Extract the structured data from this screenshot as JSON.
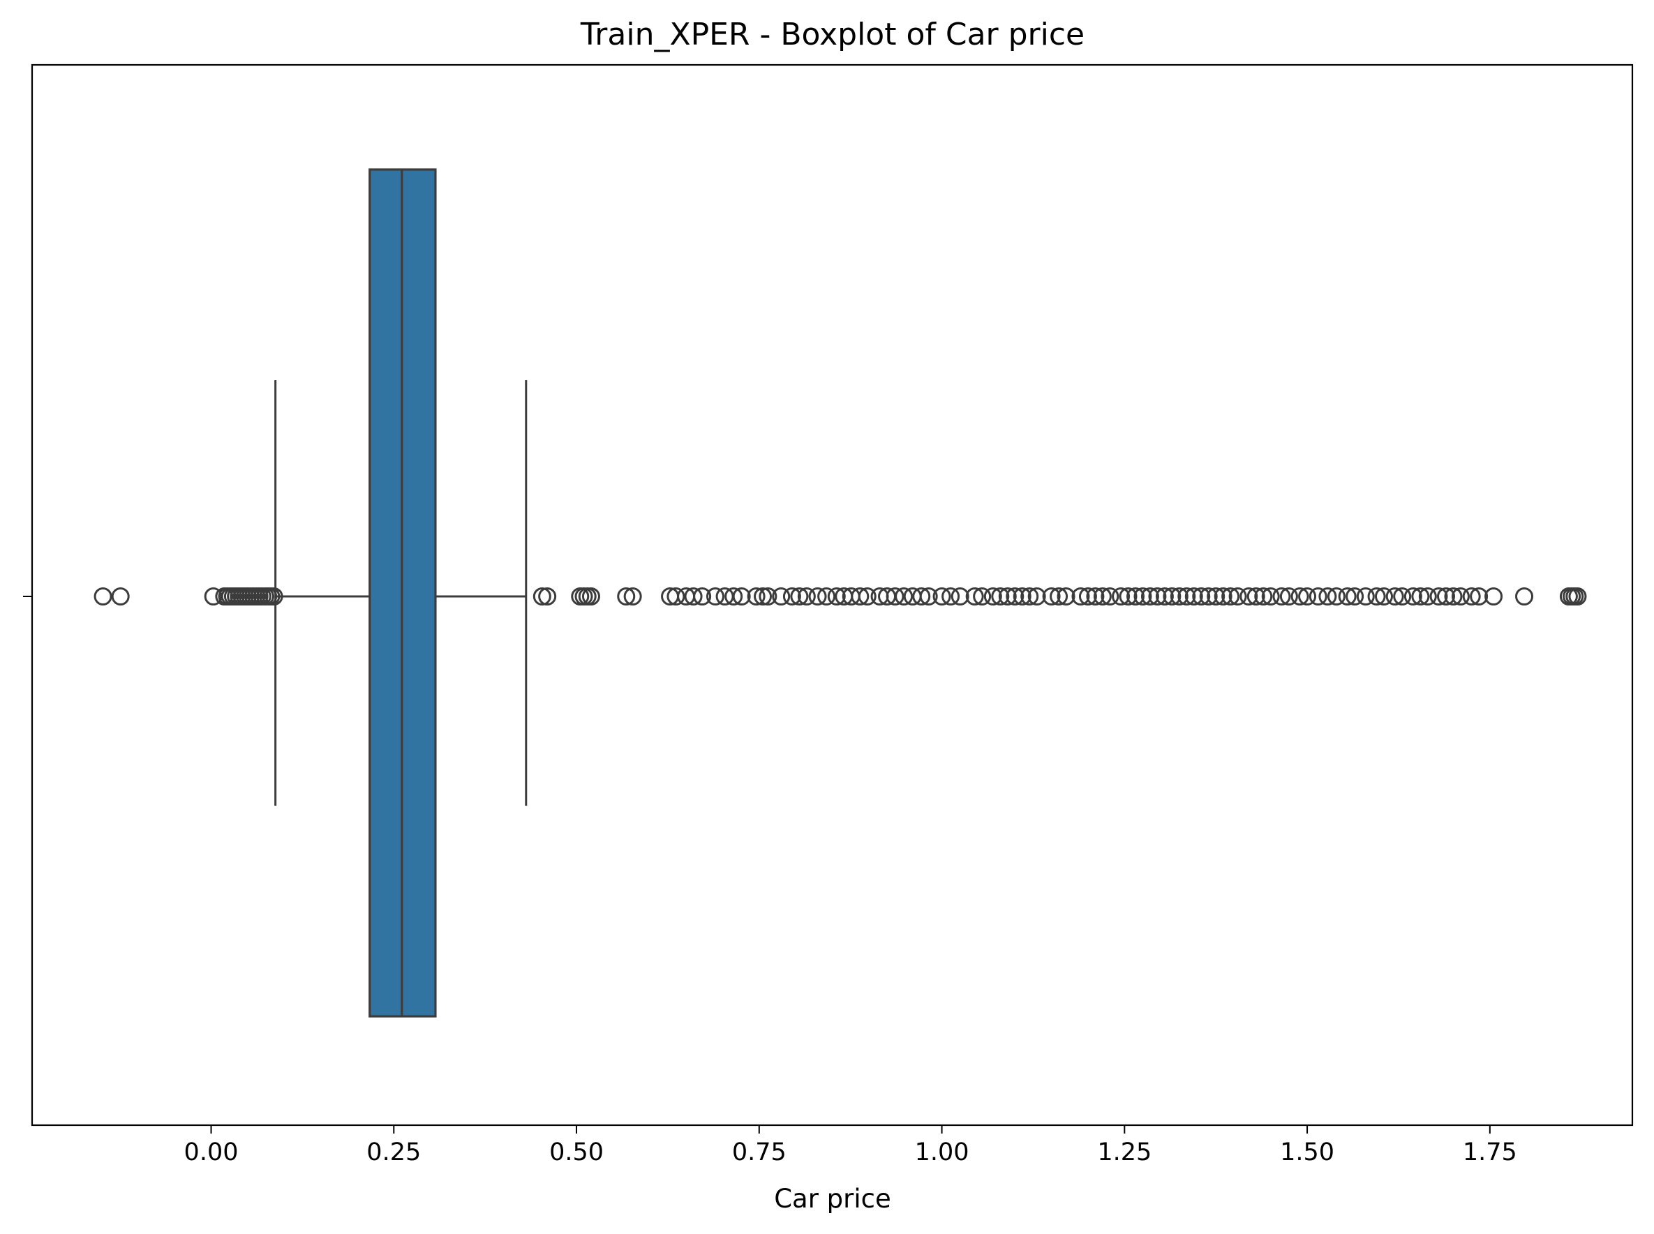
{
  "chart_data": {
    "type": "boxplot",
    "title": "Train_XPER - Boxplot of Car price",
    "xlabel": "Car price",
    "ylabel": "",
    "orientation": "horizontal",
    "xlim": [
      -0.245,
      1.945
    ],
    "xticks": [
      0.0,
      0.25,
      0.5,
      0.75,
      1.0,
      1.25,
      1.5,
      1.75
    ],
    "xtick_labels": [
      "0.00",
      "0.25",
      "0.50",
      "0.75",
      "1.00",
      "1.25",
      "1.50",
      "1.75"
    ],
    "grid": false,
    "box": {
      "whisker_low": 0.088,
      "q1": 0.217,
      "median": 0.261,
      "q3": 0.307,
      "whisker_high": 0.431
    },
    "outliers": [
      -0.148,
      -0.124,
      0.003,
      0.018,
      0.022,
      0.026,
      0.03,
      0.034,
      0.038,
      0.042,
      0.046,
      0.05,
      0.054,
      0.058,
      0.062,
      0.066,
      0.07,
      0.074,
      0.078,
      0.082,
      0.086,
      0.453,
      0.46,
      0.505,
      0.51,
      0.515,
      0.52,
      0.568,
      0.577,
      0.628,
      0.636,
      0.65,
      0.66,
      0.672,
      0.69,
      0.703,
      0.715,
      0.726,
      0.746,
      0.755,
      0.762,
      0.78,
      0.795,
      0.805,
      0.815,
      0.83,
      0.842,
      0.856,
      0.866,
      0.876,
      0.888,
      0.898,
      0.915,
      0.925,
      0.936,
      0.948,
      0.96,
      0.972,
      0.982,
      1.0,
      1.012,
      1.025,
      1.045,
      1.055,
      1.07,
      1.08,
      1.09,
      1.1,
      1.11,
      1.12,
      1.13,
      1.15,
      1.16,
      1.17,
      1.19,
      1.2,
      1.21,
      1.22,
      1.23,
      1.245,
      1.255,
      1.265,
      1.275,
      1.285,
      1.295,
      1.305,
      1.315,
      1.325,
      1.335,
      1.345,
      1.355,
      1.365,
      1.375,
      1.385,
      1.395,
      1.405,
      1.42,
      1.43,
      1.44,
      1.45,
      1.465,
      1.475,
      1.49,
      1.5,
      1.515,
      1.528,
      1.54,
      1.555,
      1.565,
      1.58,
      1.595,
      1.605,
      1.62,
      1.63,
      1.645,
      1.655,
      1.665,
      1.68,
      1.69,
      1.7,
      1.71,
      1.725,
      1.735,
      1.755,
      1.797,
      1.858,
      1.862,
      1.866,
      1.87
    ],
    "box_color": "#3274a1",
    "line_color": "#3c3c3c"
  }
}
